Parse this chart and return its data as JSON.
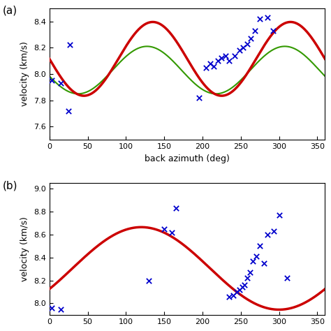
{
  "panel_a": {
    "label": "(a)",
    "ylabel": "velocity (km/s)",
    "xlabel": "back azimuth (deg)",
    "xlim": [
      0,
      360
    ],
    "ylim": [
      7.5,
      8.5
    ],
    "yticks": [
      7.6,
      7.8,
      8.0,
      8.2,
      8.4
    ],
    "xticks": [
      0,
      50,
      100,
      150,
      200,
      250,
      300,
      350
    ],
    "red_curve": {
      "amplitude": 0.28,
      "mean": 8.115,
      "phase_deg": 270,
      "period": 180
    },
    "green_curve": {
      "amplitude": 0.18,
      "mean": 8.03,
      "phase_deg": 255,
      "period": 180
    },
    "scatter_x": [
      3,
      15,
      25,
      27,
      195,
      205,
      210,
      215,
      220,
      225,
      230,
      235,
      242,
      248,
      253,
      258,
      263,
      268,
      275,
      285,
      292
    ],
    "scatter_y": [
      7.95,
      7.93,
      7.72,
      8.22,
      7.82,
      8.05,
      8.08,
      8.06,
      8.1,
      8.12,
      8.14,
      8.1,
      8.14,
      8.18,
      8.2,
      8.23,
      8.27,
      8.33,
      8.42,
      8.43,
      8.33
    ]
  },
  "panel_b": {
    "label": "(b)",
    "ylabel": "velocity (km/s)",
    "xlim": [
      0,
      360
    ],
    "ylim": [
      7.9,
      9.05
    ],
    "yticks": [
      8.0,
      8.2,
      8.4,
      8.6,
      8.8,
      9.0
    ],
    "xticks": [
      0,
      50,
      100,
      150,
      200,
      250,
      300,
      350
    ],
    "red_curve": {
      "amplitude": 0.36,
      "mean": 8.305,
      "phase_deg": 120,
      "period": 360
    },
    "scatter_x": [
      3,
      15,
      130,
      150,
      160,
      165,
      235,
      240,
      245,
      248,
      252,
      255,
      258,
      262,
      266,
      270,
      275,
      280,
      285,
      293,
      300,
      310
    ],
    "scatter_y": [
      7.96,
      7.95,
      8.2,
      8.65,
      8.62,
      8.83,
      8.06,
      8.07,
      8.1,
      8.12,
      8.14,
      8.16,
      8.22,
      8.27,
      8.37,
      8.41,
      8.5,
      8.35,
      8.6,
      8.63,
      8.77,
      8.22
    ]
  },
  "colors": {
    "red": "#cc0000",
    "green": "#339900",
    "scatter": "#0000cc",
    "background": "#ffffff"
  }
}
